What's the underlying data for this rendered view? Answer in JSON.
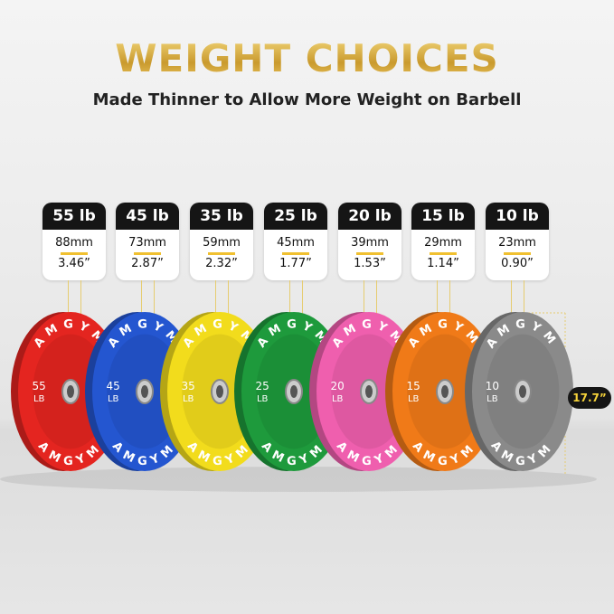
{
  "header": {
    "title": "WEIGHT CHOICES",
    "subtitle": "Made Thinner to Allow More Weight on Barbell"
  },
  "brand": "AMGYM",
  "plates": [
    {
      "weight": "55 lb",
      "number": "55",
      "unit": "LB",
      "mm": "88mm",
      "inches": "3.46”",
      "color": "#e42520"
    },
    {
      "weight": "45 lb",
      "number": "45",
      "unit": "LB",
      "mm": "73mm",
      "inches": "2.87”",
      "color": "#2456d0"
    },
    {
      "weight": "35 lb",
      "number": "35",
      "unit": "LB",
      "mm": "59mm",
      "inches": "2.32”",
      "color": "#f2dc1c"
    },
    {
      "weight": "25 lb",
      "number": "25",
      "unit": "LB",
      "mm": "45mm",
      "inches": "1.77”",
      "color": "#1e9a3c"
    },
    {
      "weight": "20 lb",
      "number": "20",
      "unit": "LB",
      "mm": "39mm",
      "inches": "1.53”",
      "color": "#ef5fae"
    },
    {
      "weight": "15 lb",
      "number": "15",
      "unit": "LB",
      "mm": "29mm",
      "inches": "1.14”",
      "color": "#f07a18"
    },
    {
      "weight": "10 lb",
      "number": "10",
      "unit": "LB",
      "mm": "23mm",
      "inches": "0.90”",
      "color": "#8a8a8a"
    }
  ],
  "diameter": "17.7”"
}
